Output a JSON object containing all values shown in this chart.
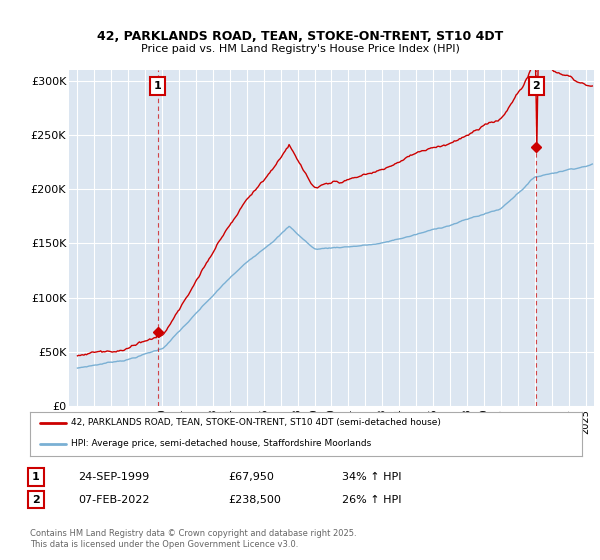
{
  "title": "42, PARKLANDS ROAD, TEAN, STOKE-ON-TRENT, ST10 4DT",
  "subtitle": "Price paid vs. HM Land Registry's House Price Index (HPI)",
  "ylabel_ticks": [
    "£0",
    "£50K",
    "£100K",
    "£150K",
    "£200K",
    "£250K",
    "£300K"
  ],
  "ytick_vals": [
    0,
    50000,
    100000,
    150000,
    200000,
    250000,
    300000
  ],
  "ylim": [
    0,
    310000
  ],
  "xlim_start": 1994.5,
  "xlim_end": 2025.5,
  "bg_color": "#dce6f1",
  "red_color": "#cc0000",
  "blue_color": "#7ab0d4",
  "marker1_x": 1999.73,
  "marker1_y": 67950,
  "marker2_x": 2022.1,
  "marker2_y": 238500,
  "legend_line1": "42, PARKLANDS ROAD, TEAN, STOKE-ON-TRENT, ST10 4DT (semi-detached house)",
  "legend_line2": "HPI: Average price, semi-detached house, Staffordshire Moorlands",
  "annotation1_label": "1",
  "annotation1_date": "24-SEP-1999",
  "annotation1_price": "£67,950",
  "annotation1_hpi": "34% ↑ HPI",
  "annotation2_label": "2",
  "annotation2_date": "07-FEB-2022",
  "annotation2_price": "£238,500",
  "annotation2_hpi": "26% ↑ HPI",
  "footer": "Contains HM Land Registry data © Crown copyright and database right 2025.\nThis data is licensed under the Open Government Licence v3.0."
}
